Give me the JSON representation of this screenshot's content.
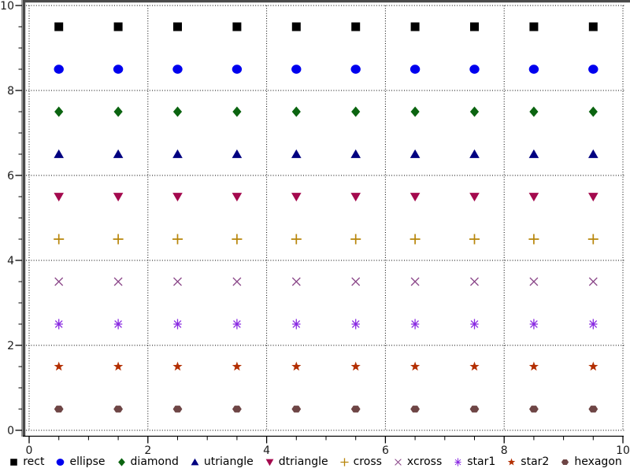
{
  "figure": {
    "background": "#ffffff",
    "frame_color": "#4a4a4a",
    "axis_color": "#000000",
    "grid_color": "#000000",
    "tick_label_color": "#1a1a1a",
    "legend_text_color": "#000000"
  },
  "chart_data": {
    "type": "scatter",
    "title": "",
    "xlabel": "",
    "ylabel": "",
    "xlim": [
      0,
      10
    ],
    "ylim": [
      0,
      10
    ],
    "x_major_ticks": [
      0,
      2,
      4,
      6,
      8,
      10
    ],
    "y_major_ticks": [
      0,
      2,
      4,
      6,
      8,
      10
    ],
    "x_tick_labels": [
      "0",
      "2",
      "4",
      "6",
      "8",
      "10"
    ],
    "y_tick_labels": [
      "0",
      "2",
      "4",
      "6",
      "8",
      "10"
    ],
    "minor_tick_step": 0.5,
    "grid": {
      "visible": true,
      "style": "dotted",
      "x_lines": [
        0,
        2,
        4,
        6,
        8,
        10
      ],
      "y_lines": [
        0,
        2,
        4,
        6,
        8,
        10
      ]
    },
    "x_values": [
      0.5,
      1.5,
      2.5,
      3.5,
      4.5,
      5.5,
      6.5,
      7.5,
      8.5,
      9.5
    ],
    "series": [
      {
        "name": "rect",
        "shape": "rect",
        "color": "#000000",
        "y": 9.5
      },
      {
        "name": "ellipse",
        "shape": "ellipse",
        "color": "#0000ee",
        "y": 8.5
      },
      {
        "name": "diamond",
        "shape": "diamond",
        "color": "#0b6410",
        "y": 7.5
      },
      {
        "name": "utriangle",
        "shape": "utriangle",
        "color": "#000080",
        "y": 6.5
      },
      {
        "name": "dtriangle",
        "shape": "dtriangle",
        "color": "#a40a4e",
        "y": 5.5
      },
      {
        "name": "cross",
        "shape": "cross",
        "color": "#b8860b",
        "y": 4.5
      },
      {
        "name": "xcross",
        "shape": "xcross",
        "color": "#8b4789",
        "y": 3.5
      },
      {
        "name": "star1",
        "shape": "star1",
        "color": "#8a2be2",
        "y": 2.5
      },
      {
        "name": "star2",
        "shape": "star2",
        "color": "#b32e00",
        "y": 1.5
      },
      {
        "name": "hexagon",
        "shape": "hexagon",
        "color": "#6e4545",
        "y": 0.5
      }
    ],
    "legend": {
      "position": "bottom-center",
      "entries": [
        "rect",
        "ellipse",
        "diamond",
        "utriangle",
        "dtriangle",
        "cross",
        "xcross",
        "star1",
        "star2",
        "hexagon"
      ]
    }
  }
}
